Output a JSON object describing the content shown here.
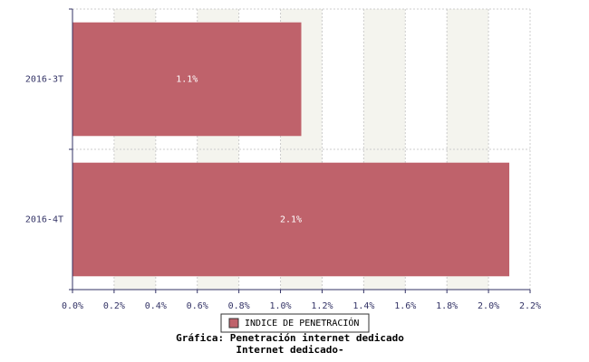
{
  "chart_data": {
    "type": "hbar",
    "title": "Gráfica: Penetración internet dedicado",
    "subtitle": "Internet dedicado-",
    "categories": [
      "2016-3T",
      "2016-4T"
    ],
    "series": [
      {
        "name": "INDICE DE PENETRACIÓN",
        "color": "#bf626b",
        "values": [
          1.1,
          2.1
        ],
        "value_labels": [
          "1.1%",
          "2.1%"
        ]
      }
    ],
    "xlim": [
      0,
      2.2
    ],
    "xticks": [
      {
        "value": 0,
        "label": "0.0%"
      },
      {
        "value": 0.2,
        "label": "0.2%"
      },
      {
        "value": 0.4,
        "label": "0.4%"
      },
      {
        "value": 0.6,
        "label": "0.6%"
      },
      {
        "value": 0.8,
        "label": "0.8%"
      },
      {
        "value": 1.0,
        "label": "1.0%"
      },
      {
        "value": 1.2,
        "label": "1.2%"
      },
      {
        "value": 1.4,
        "label": "1.4%"
      },
      {
        "value": 1.6,
        "label": "1.6%"
      },
      {
        "value": 1.8,
        "label": "1.8%"
      },
      {
        "value": 2.0,
        "label": "2.0%"
      },
      {
        "value": 2.2,
        "label": "2.2%"
      }
    ],
    "grid": true
  }
}
